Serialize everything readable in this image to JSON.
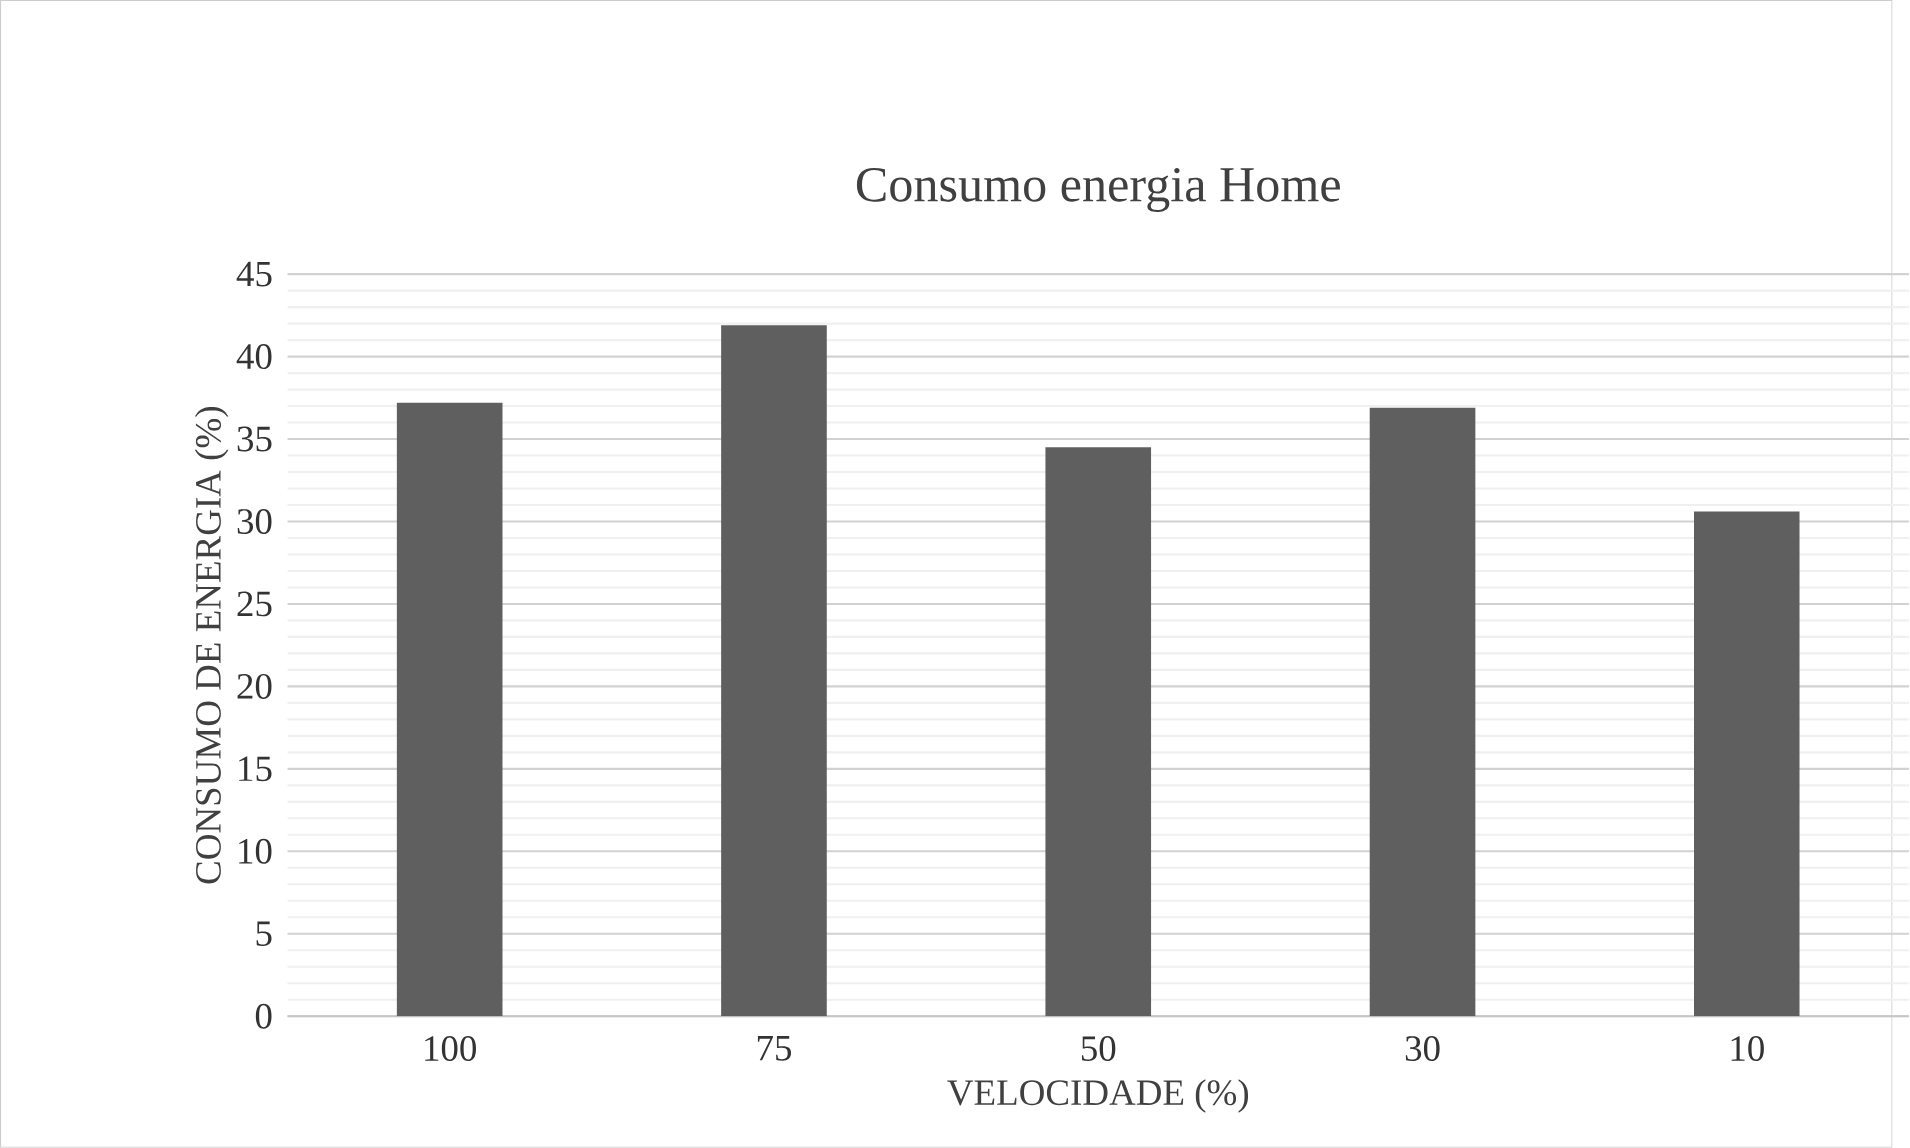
{
  "chart_data": {
    "type": "bar",
    "title": "Consumo energia Home",
    "xlabel": "VELOCIDADE (%)",
    "ylabel": "CONSUMO DE ENERGIA  (%)",
    "categories": [
      "100",
      "75",
      "50",
      "30",
      "10"
    ],
    "values": [
      37.2,
      41.9,
      34.5,
      36.9,
      30.6
    ],
    "color": "#5f5f5f",
    "ylim": [
      0,
      45
    ],
    "yticks": [
      0,
      5,
      10,
      15,
      20,
      25,
      30,
      35,
      40,
      45
    ],
    "grid": "y"
  }
}
